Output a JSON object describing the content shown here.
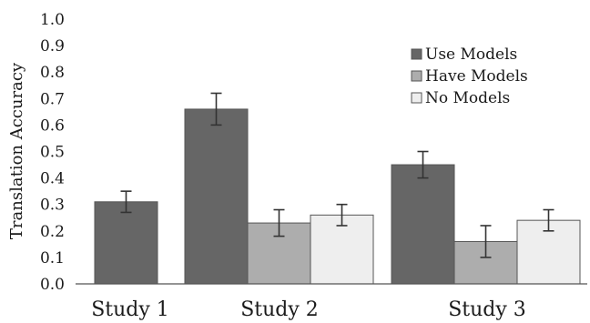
{
  "chart_data": {
    "type": "bar",
    "ylabel": "Translation Accuracy",
    "ylim": [
      0,
      1.0
    ],
    "yticks": [
      "0.0",
      "0.1",
      "0.2",
      "0.3",
      "0.4",
      "0.5",
      "0.6",
      "0.7",
      "0.8",
      "0.9",
      "1.0"
    ],
    "categories": [
      "Study 1",
      "Study 2",
      "Study 3"
    ],
    "legend_position": "top-right",
    "series": [
      {
        "name": "Use Models",
        "color": "#666666",
        "values": [
          0.31,
          0.66,
          0.45
        ],
        "err": [
          0.04,
          0.06,
          0.05
        ]
      },
      {
        "name": "Have Models",
        "color": "#adadad",
        "values": [
          null,
          0.23,
          0.16
        ],
        "err": [
          null,
          0.05,
          0.06
        ]
      },
      {
        "name": "No Models",
        "color": "#eeeeee",
        "values": [
          null,
          0.26,
          0.24
        ],
        "err": [
          null,
          0.04,
          0.04
        ]
      }
    ]
  }
}
